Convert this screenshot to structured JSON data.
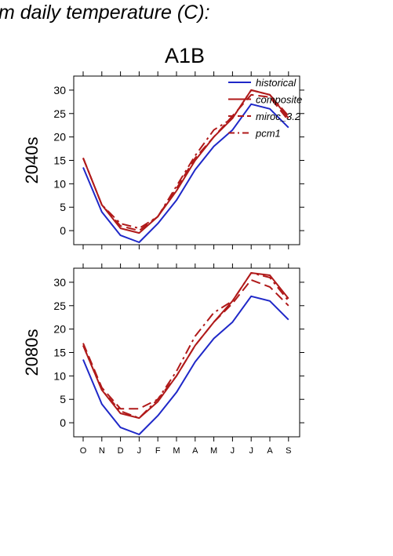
{
  "heading": "m daily temperature (C):",
  "scenario": "A1B",
  "colors": {
    "historical": "#1f28c8",
    "projection": "#b01a1a",
    "axis": "#000000"
  },
  "chart_data": [
    {
      "type": "line",
      "row_label": "2040s",
      "title": "",
      "xlabel": "",
      "ylabel": "",
      "categories": [
        "O",
        "N",
        "D",
        "J",
        "F",
        "M",
        "A",
        "M",
        "J",
        "J",
        "A",
        "S"
      ],
      "ylim": [
        -3,
        33
      ],
      "yticks": [
        0,
        5,
        10,
        15,
        20,
        25,
        30
      ],
      "grid": false,
      "legend_placement": "top-right",
      "series": [
        {
          "name": "historical",
          "color": "#1f28c8",
          "dash": "solid",
          "values": [
            13.5,
            4.0,
            -1.0,
            -2.5,
            1.5,
            6.5,
            13.0,
            18.0,
            21.5,
            27.0,
            26.0,
            22.0
          ]
        },
        {
          "name": "composite",
          "color": "#b01a1a",
          "dash": "solid",
          "values": [
            15.5,
            5.5,
            0.5,
            -0.5,
            3.0,
            8.5,
            15.0,
            20.0,
            24.0,
            30.0,
            29.0,
            24.0
          ]
        },
        {
          "name": "miroc_3.2",
          "color": "#b01a1a",
          "dash": "dash",
          "values": [
            15.5,
            5.5,
            1.0,
            0.0,
            3.0,
            9.0,
            15.5,
            20.0,
            24.5,
            29.0,
            28.5,
            23.5
          ]
        },
        {
          "name": "pcm1",
          "color": "#b01a1a",
          "dash": "dashdot",
          "values": [
            15.5,
            5.5,
            1.5,
            0.5,
            3.0,
            9.5,
            16.0,
            21.5,
            24.0,
            30.0,
            29.0,
            24.5
          ]
        }
      ]
    },
    {
      "type": "line",
      "row_label": "2080s",
      "title": "",
      "xlabel": "",
      "ylabel": "",
      "categories": [
        "O",
        "N",
        "D",
        "J",
        "F",
        "M",
        "A",
        "M",
        "J",
        "J",
        "A",
        "S"
      ],
      "ylim": [
        -3,
        33
      ],
      "yticks": [
        0,
        5,
        10,
        15,
        20,
        25,
        30
      ],
      "grid": false,
      "series": [
        {
          "name": "historical",
          "color": "#1f28c8",
          "dash": "solid",
          "values": [
            13.5,
            4.0,
            -1.0,
            -2.5,
            1.5,
            6.5,
            13.0,
            18.0,
            21.5,
            27.0,
            26.0,
            22.0
          ]
        },
        {
          "name": "composite",
          "color": "#b01a1a",
          "dash": "solid",
          "values": [
            16.5,
            7.0,
            2.0,
            1.0,
            4.5,
            10.0,
            16.5,
            21.5,
            26.0,
            32.0,
            31.5,
            26.5
          ]
        },
        {
          "name": "miroc_3.2",
          "color": "#b01a1a",
          "dash": "dash",
          "values": [
            17.0,
            7.5,
            3.0,
            3.0,
            5.0,
            10.0,
            16.5,
            21.5,
            25.5,
            30.5,
            29.0,
            25.0
          ]
        },
        {
          "name": "pcm1",
          "color": "#b01a1a",
          "dash": "dashdot",
          "values": [
            16.5,
            7.0,
            2.5,
            1.0,
            5.0,
            11.0,
            18.5,
            23.5,
            26.0,
            32.0,
            31.0,
            26.0
          ]
        }
      ]
    }
  ],
  "legend": {
    "entries": [
      {
        "label": "historical",
        "color": "#1f28c8",
        "dash": "solid"
      },
      {
        "label": "composite",
        "color": "#b01a1a",
        "dash": "solid"
      },
      {
        "label": "miroc_3.2",
        "color": "#b01a1a",
        "dash": "dash"
      },
      {
        "label": "pcm1",
        "color": "#b01a1a",
        "dash": "dashdot"
      }
    ]
  }
}
